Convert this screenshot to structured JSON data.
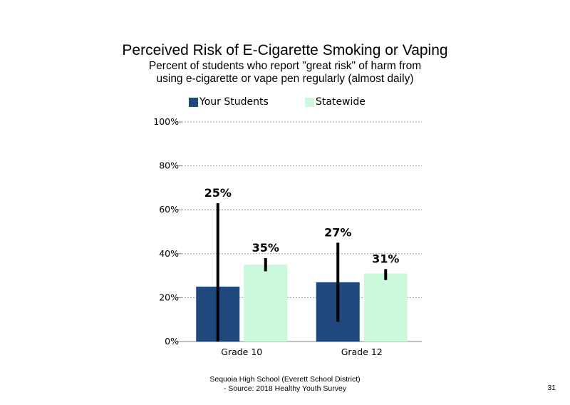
{
  "slide": {
    "title": "Perceived Risk of E-Cigarette Smoking or Vaping",
    "subtitle_line1": "Percent of students who report \"great risk\" of harm from",
    "subtitle_line2": "using e-cigarette or vape pen regularly (almost daily)",
    "footer_line1": "Sequoia High School (Everett School District)",
    "footer_line2": "- Source: 2018 Healthy Youth Survey",
    "page_number": "31"
  },
  "chart_data": {
    "type": "bar",
    "title": "Perceived Risk of E-Cigarette Smoking or Vaping",
    "categories": [
      "Grade 10",
      "Grade 12"
    ],
    "series": [
      {
        "name": "Your Students",
        "color": "#1f497d",
        "values": [
          25,
          27
        ],
        "labels": [
          "25%",
          "27%"
        ],
        "error_low": [
          0,
          9
        ],
        "error_high": [
          63,
          45
        ]
      },
      {
        "name": "Statewide",
        "color": "#ccf8dc",
        "values": [
          35,
          31
        ],
        "labels": [
          "35%",
          "31%"
        ],
        "error_low": [
          32,
          28
        ],
        "error_high": [
          38,
          33
        ]
      }
    ],
    "y_ticks": [
      0,
      20,
      40,
      60,
      80,
      100
    ],
    "y_tick_labels": [
      "0%",
      "20%",
      "40%",
      "60%",
      "80%",
      "100%"
    ],
    "ylim": [
      0,
      100
    ],
    "grid": true,
    "legend_position": "top"
  }
}
